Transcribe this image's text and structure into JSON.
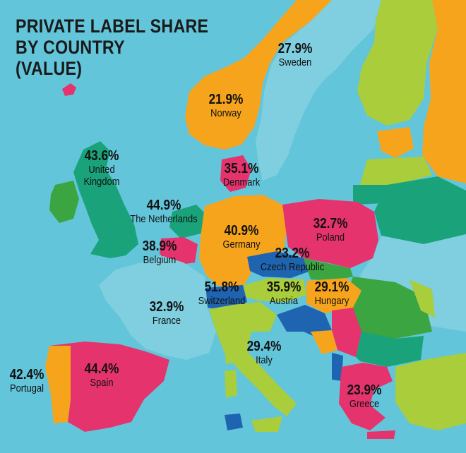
{
  "title": {
    "line1": "PRIVATE LABEL SHARE",
    "line2": "BY COUNTRY",
    "line3": "(VALUE)"
  },
  "colors": {
    "sea": "#63c5da",
    "green": "#1aa37a",
    "orange": "#f7a41d",
    "pink": "#e5336e",
    "lime": "#a9cd3b",
    "blue": "#1f64b0",
    "dark_green": "#3aa541",
    "light_blue": "#7fcfe0"
  },
  "countries": [
    {
      "id": "sweden",
      "pct": "27.9%",
      "name": "Sweden"
    },
    {
      "id": "norway",
      "pct": "21.9%",
      "name": "Norway"
    },
    {
      "id": "uk",
      "pct": "43.6%",
      "name": "United Kingdom"
    },
    {
      "id": "denmark",
      "pct": "35.1%",
      "name": "Denmark"
    },
    {
      "id": "netherlands",
      "pct": "44.9%",
      "name": "The Netherlands"
    },
    {
      "id": "germany",
      "pct": "40.9%",
      "name": "Germany"
    },
    {
      "id": "poland",
      "pct": "32.7%",
      "name": "Poland"
    },
    {
      "id": "belgium",
      "pct": "38.9%",
      "name": "Belgium"
    },
    {
      "id": "czech",
      "pct": "23.2%",
      "name": "Czech Republic"
    },
    {
      "id": "switzerland",
      "pct": "51.8%",
      "name": "Switzerland"
    },
    {
      "id": "austria",
      "pct": "35.9%",
      "name": "Austria"
    },
    {
      "id": "hungary",
      "pct": "29.1%",
      "name": "Hungary"
    },
    {
      "id": "france",
      "pct": "32.9%",
      "name": "France"
    },
    {
      "id": "italy",
      "pct": "29.4%",
      "name": "Italy"
    },
    {
      "id": "portugal",
      "pct": "42.4%",
      "name": "Portugal"
    },
    {
      "id": "spain",
      "pct": "44.4%",
      "name": "Spain"
    },
    {
      "id": "greece",
      "pct": "23.9%",
      "name": "Greece"
    }
  ]
}
